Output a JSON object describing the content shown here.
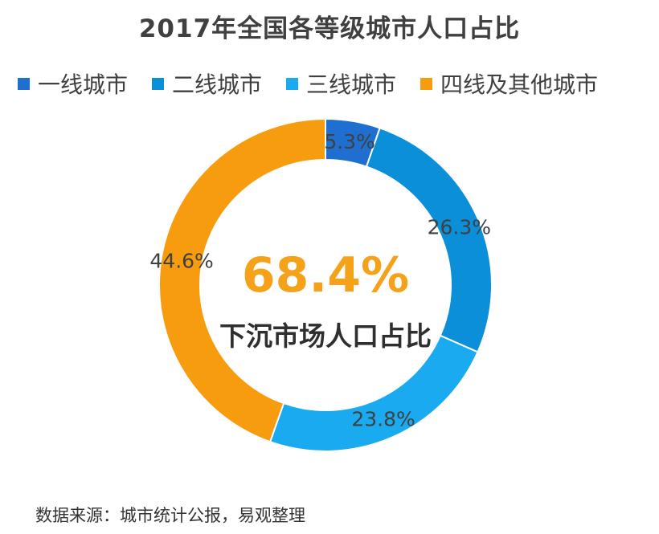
{
  "chart_data": {
    "type": "pie",
    "title": "2017年全国各等级城市人口占比",
    "categories": [
      "一线城市",
      "二线城市",
      "三线城市",
      "四线及其他城市"
    ],
    "values": [
      5.3,
      26.3,
      23.8,
      44.6
    ],
    "value_labels": [
      "5.3%",
      "26.3%",
      "23.8%",
      "44.6%"
    ],
    "colors": [
      "#1f6fd0",
      "#0a8fd8",
      "#1aaaf0",
      "#f79c0e"
    ],
    "legend_position": "top",
    "center_value": "68.4%",
    "center_label": "下沉市场人口占比"
  },
  "footer": {
    "source": "数据来源：城市统计公报，易观整理"
  },
  "colors": {
    "center_value": "#f5a11a",
    "center_label": "#2f2f2f"
  }
}
